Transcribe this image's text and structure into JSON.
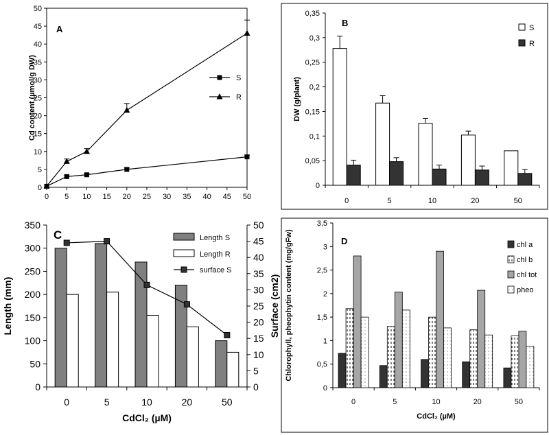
{
  "chart_data": [
    {
      "id": "A",
      "type": "line",
      "panel_label": "A",
      "ylabel": "Cd content (µmol/g DW)",
      "xlabel": "",
      "xlim": [
        0,
        50
      ],
      "ylim": [
        0,
        50
      ],
      "x_ticks": [
        "0",
        "5",
        "10",
        "15",
        "20",
        "25",
        "30",
        "35",
        "40",
        "45",
        "50"
      ],
      "y_ticks": [
        "0",
        "5",
        "10",
        "15",
        "20",
        "25",
        "30",
        "35",
        "40",
        "45",
        "50"
      ],
      "x": [
        0,
        5,
        10,
        20,
        50
      ],
      "series": [
        {
          "name": "S",
          "marker": "square",
          "values": [
            0.3,
            3.0,
            3.5,
            5.0,
            8.5
          ],
          "errors": [
            0,
            0.4,
            0.4,
            0.4,
            0.5
          ]
        },
        {
          "name": "R",
          "marker": "triangle",
          "values": [
            0.3,
            7.2,
            10.0,
            21.5,
            43.0
          ],
          "errors": [
            0,
            0.7,
            0.8,
            1.9,
            3.7
          ]
        }
      ],
      "legend_position": "center-right",
      "grid": false
    },
    {
      "id": "B",
      "type": "bar",
      "panel_label": "B",
      "ylabel": "DW (g/plant)",
      "xlabel": "",
      "categories": [
        "0",
        "5",
        "10",
        "20",
        "50"
      ],
      "ylim": [
        0,
        0.35
      ],
      "y_ticks": [
        "0",
        "0,05",
        "0,1",
        "0,15",
        "0,2",
        "0,25",
        "0,3",
        "0,35"
      ],
      "series": [
        {
          "name": "S",
          "color": "#ffffff",
          "values": [
            0.278,
            0.167,
            0.126,
            0.102,
            0.07
          ],
          "errors": [
            0.025,
            0.015,
            0.01,
            0.008,
            0
          ]
        },
        {
          "name": "R",
          "color": "#333333",
          "values": [
            0.041,
            0.048,
            0.033,
            0.031,
            0.024
          ],
          "errors": [
            0.01,
            0.008,
            0.008,
            0.008,
            0.008
          ]
        }
      ],
      "legend_position": "top-right",
      "grid": false
    },
    {
      "id": "C",
      "type": "bar",
      "panel_label": "C",
      "ylabel": "Length (mm)",
      "y2label": "Surface (cm2)",
      "xlabel": "CdCl₂ (µM)",
      "categories": [
        "0",
        "5",
        "10",
        "20",
        "50"
      ],
      "ylim": [
        0,
        350
      ],
      "y2lim": [
        0,
        50
      ],
      "y_ticks": [
        "0",
        "50",
        "100",
        "150",
        "200",
        "250",
        "300",
        "350"
      ],
      "y2_ticks": [
        "0",
        "5",
        "10",
        "15",
        "20",
        "25",
        "30",
        "35",
        "40",
        "45",
        "50"
      ],
      "series": [
        {
          "name": "Length S",
          "kind": "bar",
          "color": "#808080",
          "values": [
            300,
            310,
            270,
            220,
            100
          ]
        },
        {
          "name": "Length R",
          "kind": "bar",
          "color": "#ffffff",
          "values": [
            200,
            205,
            155,
            130,
            75
          ]
        },
        {
          "name": "surface S",
          "kind": "line",
          "axis": "right",
          "marker": "square",
          "values": [
            44.5,
            45.0,
            31.5,
            25.5,
            16.0
          ]
        }
      ],
      "legend_position": "top-right",
      "grid": false
    },
    {
      "id": "D",
      "type": "bar",
      "panel_label": "D",
      "ylabel": "Chlorophyll, pheophytin content (mg/gFw)",
      "xlabel": "CdCl₂ (µM)",
      "categories": [
        "0",
        "5",
        "10",
        "20",
        "50"
      ],
      "ylim": [
        0,
        3.5
      ],
      "y_ticks": [
        "0",
        "0,5",
        "1",
        "1,5",
        "2",
        "2,5",
        "3",
        "3,5"
      ],
      "series": [
        {
          "name": "chl a",
          "pattern": "solid-dark",
          "values": [
            0.73,
            0.47,
            0.6,
            0.55,
            0.42
          ]
        },
        {
          "name": "chl b",
          "pattern": "dashed-white",
          "values": [
            1.68,
            1.3,
            1.5,
            1.23,
            1.1
          ]
        },
        {
          "name": "chl tot",
          "pattern": "solid-gray",
          "values": [
            2.8,
            2.03,
            2.9,
            2.07,
            1.2
          ]
        },
        {
          "name": "pheo",
          "pattern": "dotted-white",
          "values": [
            1.5,
            1.65,
            1.27,
            1.12,
            0.88
          ]
        }
      ],
      "legend_position": "top-right",
      "grid": false
    }
  ]
}
